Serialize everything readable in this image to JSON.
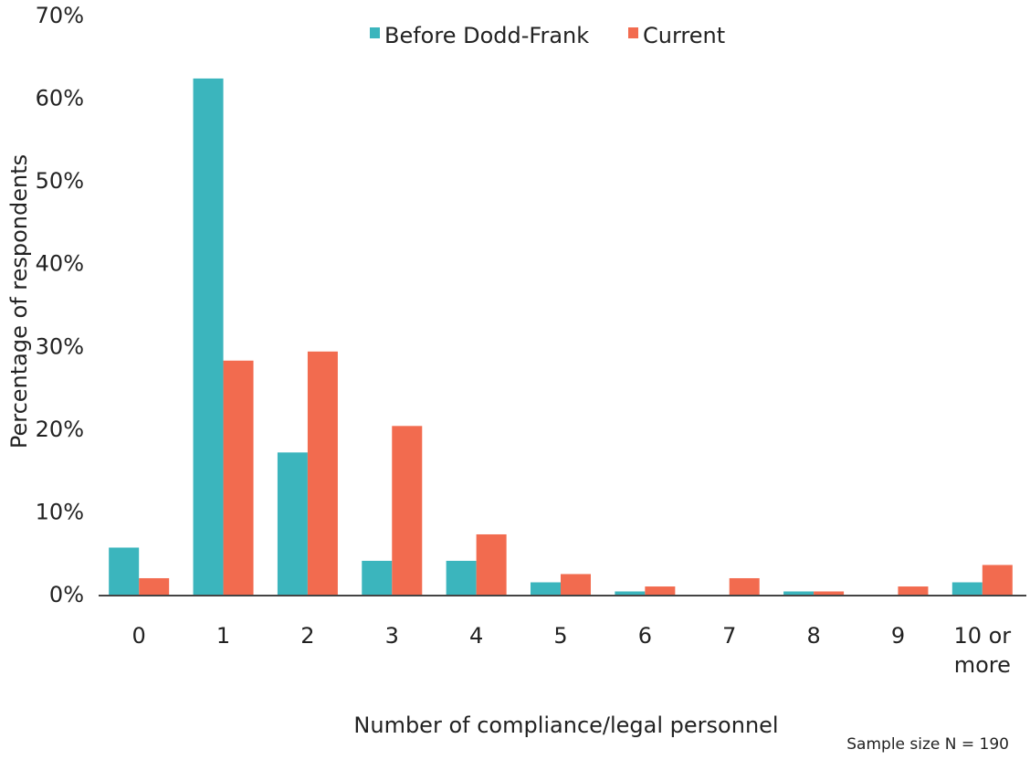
{
  "chart_data": {
    "type": "bar",
    "y_label": "Percentage of respondents",
    "x_label": "Number of compliance/legal personnel",
    "note": "Sample size N = 190",
    "categories": [
      "0",
      "1",
      "2",
      "3",
      "4",
      "5",
      "6",
      "7",
      "8",
      "9",
      "10 or more"
    ],
    "series": [
      {
        "name": "Before Dodd-Frank",
        "color": "#3bb5bd",
        "values": [
          5.8,
          62.5,
          17.3,
          4.2,
          4.2,
          1.6,
          0.5,
          0,
          0.5,
          0,
          1.6
        ]
      },
      {
        "name": "Current",
        "color": "#f26b4f",
        "values": [
          2.1,
          28.4,
          29.5,
          20.5,
          7.4,
          2.6,
          1.1,
          2.1,
          0.5,
          1.1,
          3.7
        ]
      }
    ],
    "ylim": [
      0,
      70
    ],
    "yticks": [
      {
        "value": 0,
        "label": "0%"
      },
      {
        "value": 10,
        "label": "10%"
      },
      {
        "value": 20,
        "label": "20%"
      },
      {
        "value": 30,
        "label": "30%"
      },
      {
        "value": 40,
        "label": "40%"
      },
      {
        "value": 50,
        "label": "50%"
      },
      {
        "value": 60,
        "label": "60%"
      },
      {
        "value": 70,
        "label": "70%"
      }
    ],
    "grid": false,
    "legend": "top"
  }
}
